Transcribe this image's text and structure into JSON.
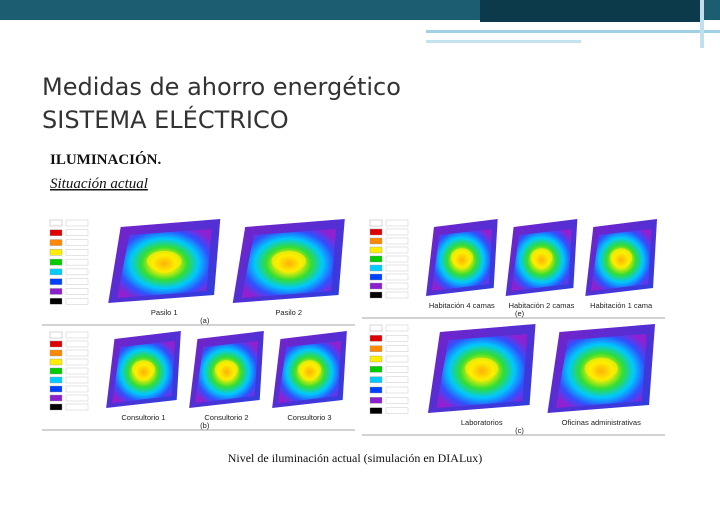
{
  "header": {
    "title_line1": "Medidas de ahorro energético",
    "title_line2": "SISTEMA ELÉCTRICO"
  },
  "section": {
    "heading": "ILUMINACIÓN.",
    "subheading": "Situación actual"
  },
  "figure": {
    "panels": [
      {
        "tag": "(a)",
        "labels": [
          "Pasilo 1",
          "Pasilo 2"
        ]
      },
      {
        "tag": "(b)",
        "labels": [
          "Consultorio 1",
          "Consultorio 2",
          "Consultorio 3"
        ]
      },
      {
        "tag": "(e)",
        "labels": [
          "Habitación 4 camas",
          "Habitación 2 camas",
          "Habitación 1 cama"
        ]
      },
      {
        "tag": "(c)",
        "labels": [
          "Laboratorios",
          "Oficinas administrativas"
        ]
      }
    ],
    "caption": "Nivel de iluminación actual (simulación en DIALux)"
  }
}
